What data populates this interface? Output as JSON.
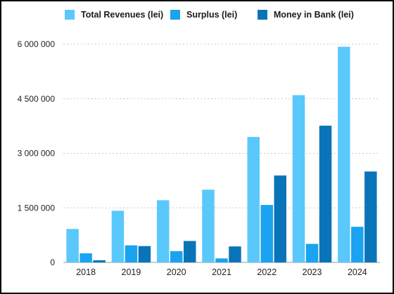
{
  "chart_data": {
    "type": "bar",
    "categories": [
      "2018",
      "2019",
      "2020",
      "2021",
      "2022",
      "2023",
      "2024"
    ],
    "series": [
      {
        "name": "Total Revenues (lei)",
        "color": "#5ac8fa",
        "values": [
          920000,
          1420000,
          1710000,
          2000000,
          3450000,
          4600000,
          5930000
        ]
      },
      {
        "name": "Surplus (lei)",
        "color": "#1aa3f0",
        "values": [
          250000,
          470000,
          310000,
          110000,
          1580000,
          510000,
          980000
        ]
      },
      {
        "name": "Money in Bank (lei)",
        "color": "#0a74b9",
        "values": [
          60000,
          450000,
          590000,
          440000,
          2390000,
          3760000,
          2500000
        ]
      }
    ],
    "yticks": [
      "0",
      "1 500 000",
      "3 000 000",
      "4 500 000",
      "6 000 000"
    ],
    "ylim": [
      0,
      6000000
    ],
    "grid": true,
    "legend_position": "top"
  }
}
